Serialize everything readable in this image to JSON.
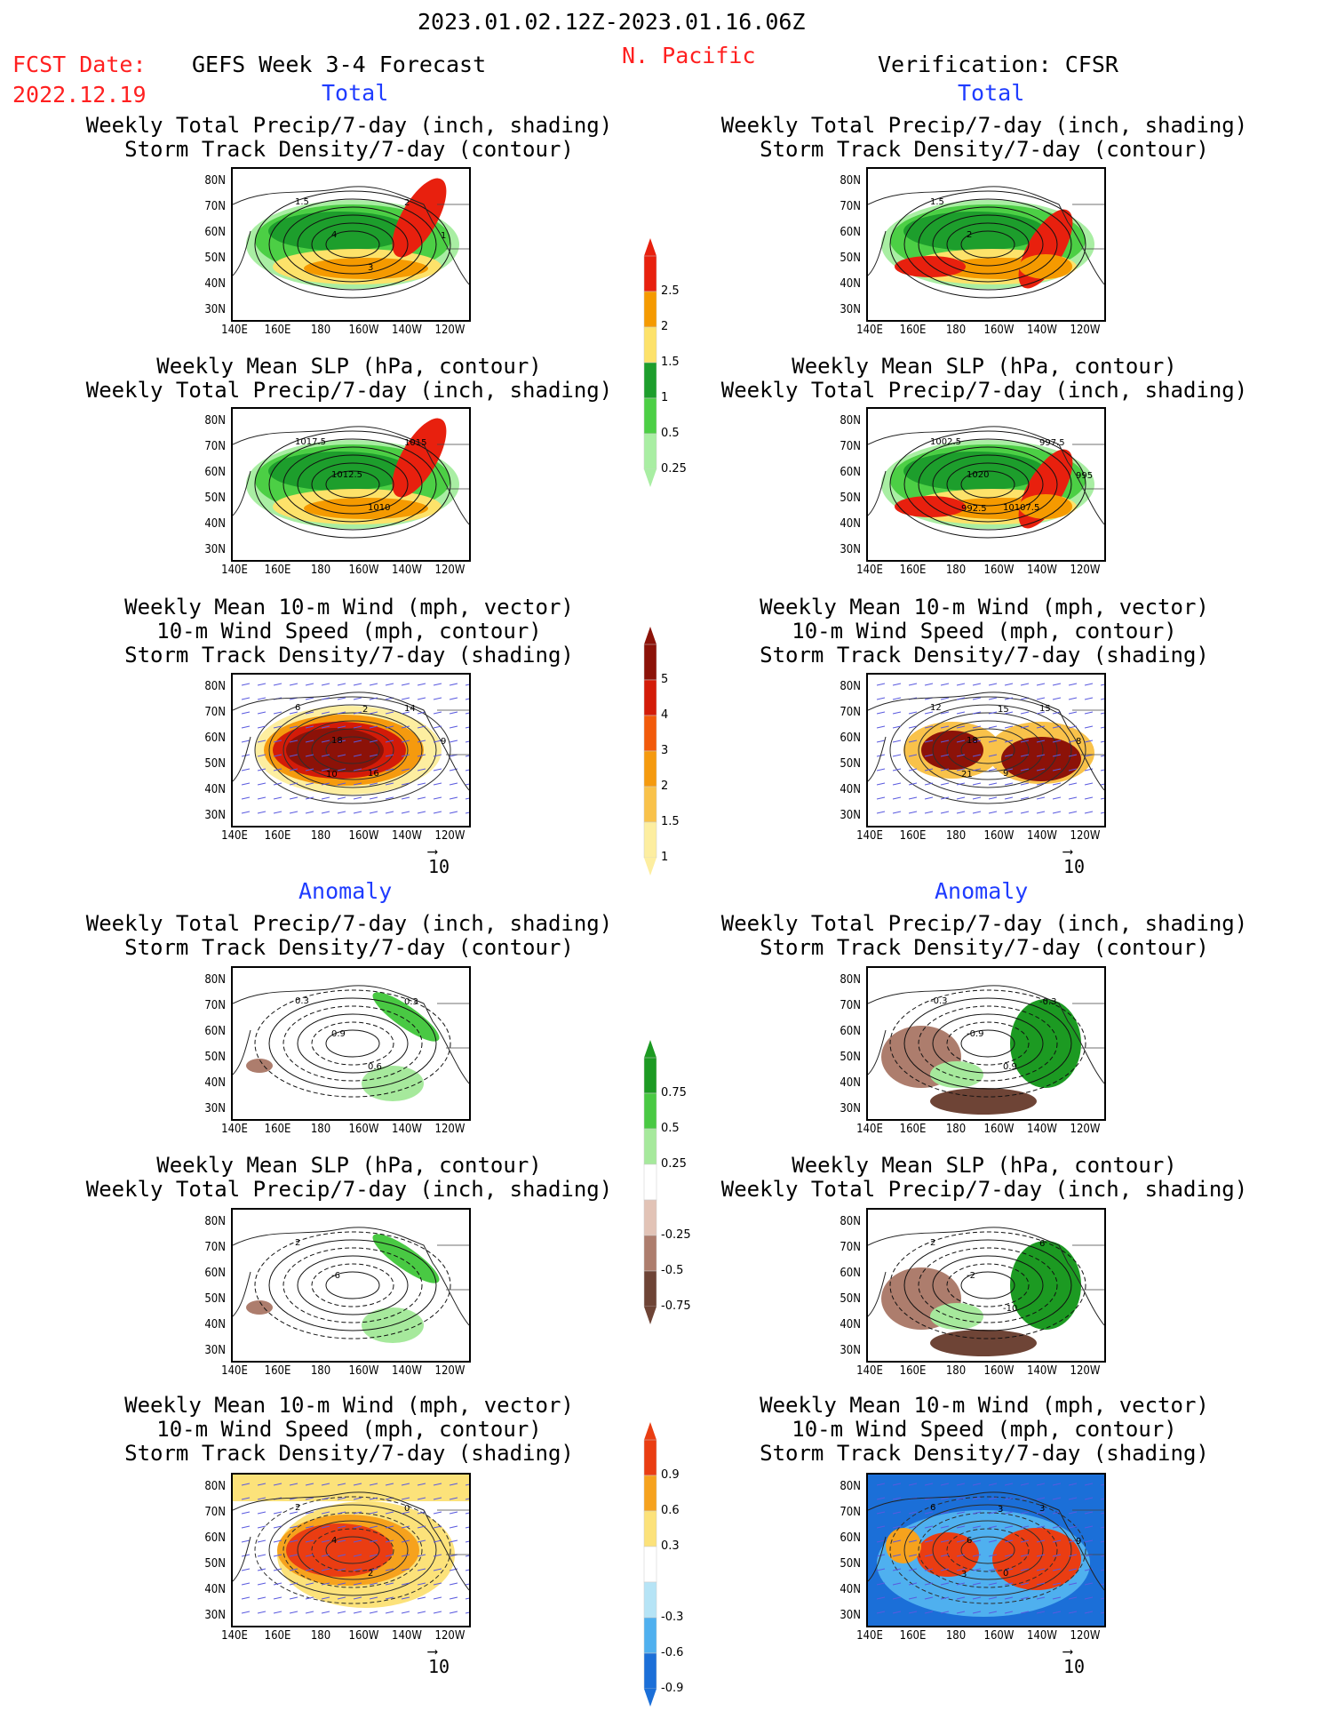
{
  "header": {
    "date_range": "2023.01.02.12Z-2023.01.16.06Z",
    "region": "N. Pacific",
    "fcst_date_label": "FCST Date:",
    "fcst_date_value": "2022.12.19",
    "forecast_title": "GEFS Week 3-4 Forecast",
    "verification_title": "Verification: CFSR"
  },
  "sections": {
    "left_total": "Total",
    "right_total": "Total",
    "left_anomaly": "Anomaly",
    "right_anomaly": "Anomaly"
  },
  "panel_titles": {
    "precip_storm": [
      "Weekly Total Precip/7-day (inch, shading)",
      "Storm Track Density/7-day (contour)"
    ],
    "slp_precip": [
      "Weekly Mean SLP (hPa, contour)",
      "Weekly Total Precip/7-day (inch, shading)"
    ],
    "wind": [
      "Weekly Mean 10-m Wind (mph, vector)",
      "10-m Wind Speed (mph, contour)",
      "Storm Track Density/7-day (shading)"
    ]
  },
  "axes": {
    "lat_labels": [
      "80N",
      "70N",
      "60N",
      "50N",
      "40N",
      "30N"
    ],
    "lon_labels": [
      "140E",
      "160E",
      "180",
      "160W",
      "140W",
      "120W"
    ]
  },
  "vector_ref": "10",
  "colorbars": {
    "precip_total": {
      "labels": [
        "2.5",
        "2",
        "1.5",
        "1",
        "0.5",
        "0.25"
      ],
      "colors": [
        "#e8200e",
        "#f59a00",
        "#fde26a",
        "#1d9e2c",
        "#4ccf45",
        "#a9eea3"
      ]
    },
    "storm_total": {
      "labels": [
        "5",
        "4",
        "3",
        "2",
        "1.5",
        "1"
      ],
      "colors": [
        "#8c1208",
        "#d31b08",
        "#f25a0a",
        "#f59a0e",
        "#f9c24a",
        "#fdeea0"
      ]
    },
    "precip_anom": {
      "labels": [
        "0.75",
        "0.5",
        "0.25",
        "-0.25",
        "-0.5",
        "-0.75"
      ],
      "colors": [
        "#1c9a22",
        "#49c943",
        "#a6e99c",
        "#ffffff",
        "#e2c3b6",
        "#ad7d6d",
        "#6e4436"
      ]
    },
    "storm_anom": {
      "labels": [
        "0.9",
        "0.6",
        "0.3",
        "-0.3",
        "-0.6",
        "-0.9"
      ],
      "colors": [
        "#ea3d12",
        "#f6a21d",
        "#fce27a",
        "#ffffff",
        "#b6e4f6",
        "#4fb0ef",
        "#1b6fd8"
      ]
    }
  },
  "map_labels": {
    "p1": [
      "1.5",
      "4",
      "3",
      "2",
      "1"
    ],
    "p2": [
      "1.5",
      "2"
    ],
    "p3": [
      "1017.5",
      "1012.5",
      "1010",
      "1015"
    ],
    "p4": [
      "1002.5",
      "1020",
      "10107.5",
      "997.5",
      "995",
      "992.5"
    ],
    "p5": [
      "6",
      "18",
      "16",
      "14",
      "9",
      "10",
      "2"
    ],
    "p6": [
      "12",
      "18",
      "9",
      "15",
      "8",
      "21",
      "15"
    ],
    "p7": [
      "0.3",
      "0.9",
      "0.6",
      "0.3"
    ],
    "p8": [
      "-0.3",
      "-0.9",
      "0.9",
      "-0.3"
    ],
    "p9": [
      "2",
      "-6"
    ],
    "p10": [
      "2",
      "-2",
      "-10",
      "6"
    ],
    "p11": [
      "2",
      "4",
      "2",
      "0"
    ],
    "p12": [
      "6",
      "6",
      "0",
      "3",
      "9",
      "3",
      "3"
    ]
  }
}
